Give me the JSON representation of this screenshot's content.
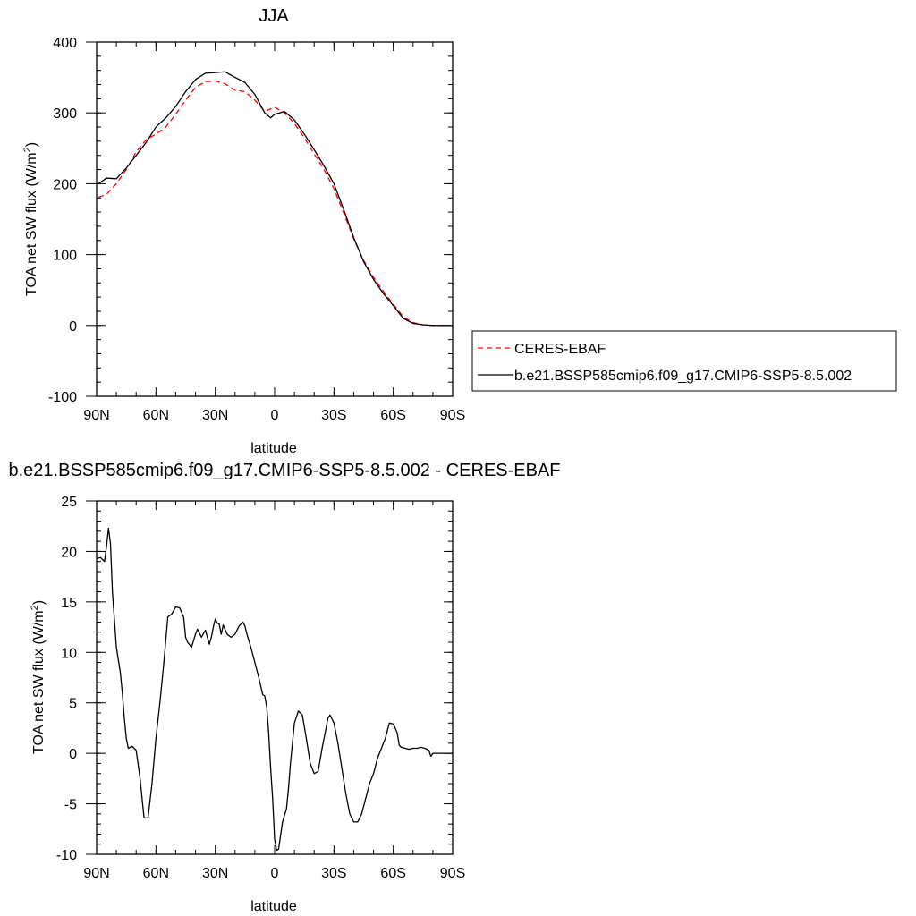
{
  "chart_data": [
    {
      "type": "line",
      "title": "JJA",
      "xlabel": "latitude",
      "ylabel": "TOA net SW flux (W/m",
      "ylabel_sup": "2",
      "ylabel_close": ")",
      "xlim": [
        90,
        -90
      ],
      "ylim": [
        -100,
        400
      ],
      "x_ticks": [
        90,
        60,
        30,
        0,
        -30,
        -60,
        -90
      ],
      "x_tick_labels": [
        "90N",
        "60N",
        "30N",
        "0",
        "30S",
        "60S",
        "90S"
      ],
      "y_ticks": [
        -100,
        0,
        100,
        200,
        300,
        400
      ],
      "y_tick_labels": [
        "-100",
        "0",
        "100",
        "200",
        "300",
        "400"
      ],
      "legend": {
        "placement": "right",
        "entries": [
          "CERES-EBAF",
          "b.e21.BSSP585cmip6.f09_g17.CMIP6-SSP5-8.5.002"
        ]
      },
      "series": [
        {
          "name": "CERES-EBAF",
          "color": "#ff0000",
          "style": "dashed",
          "x": [
            89,
            85,
            80,
            75,
            70,
            65,
            60,
            55,
            50,
            45,
            40,
            35,
            30,
            25,
            20,
            15,
            10,
            5,
            0,
            -5,
            -10,
            -15,
            -20,
            -25,
            -30,
            -35,
            -40,
            -45,
            -50,
            -55,
            -60,
            -65,
            -70,
            -75,
            -80,
            -85,
            -89
          ],
          "y": [
            181,
            185,
            200,
            220,
            245,
            262,
            270,
            280,
            298,
            318,
            336,
            344,
            345,
            341,
            332,
            330,
            318,
            302,
            308,
            300,
            285,
            265,
            242,
            220,
            193,
            158,
            122,
            92,
            68,
            48,
            30,
            12,
            4,
            1,
            0,
            0,
            0
          ]
        },
        {
          "name": "b.e21.BSSP585cmip6.f09_g17.CMIP6-SSP5-8.5.002",
          "color": "#000000",
          "style": "solid",
          "x": [
            89,
            85,
            80,
            75,
            70,
            65,
            60,
            55,
            50,
            45,
            40,
            35,
            30,
            25,
            20,
            15,
            10,
            5,
            2,
            0,
            -5,
            -10,
            -15,
            -20,
            -25,
            -30,
            -35,
            -40,
            -45,
            -50,
            -55,
            -60,
            -65,
            -70,
            -75,
            -80,
            -85,
            -89
          ],
          "y": [
            200,
            208,
            207,
            222,
            240,
            258,
            280,
            293,
            309,
            330,
            347,
            356,
            357,
            358,
            350,
            343,
            326,
            300,
            293,
            298,
            302,
            290,
            270,
            248,
            225,
            200,
            163,
            124,
            90,
            65,
            45,
            28,
            10,
            3,
            1,
            0,
            0,
            0
          ]
        }
      ]
    },
    {
      "type": "line",
      "title": "b.e21.BSSP585cmip6.f09_g17.CMIP6-SSP5-8.5.002 - CERES-EBAF",
      "xlabel": "latitude",
      "ylabel": "TOA net SW flux (W/m",
      "ylabel_sup": "2",
      "ylabel_close": ")",
      "xlim": [
        90,
        -90
      ],
      "ylim": [
        -10,
        25
      ],
      "x_ticks": [
        90,
        60,
        30,
        0,
        -30,
        -60,
        -90
      ],
      "x_tick_labels": [
        "90N",
        "60N",
        "30N",
        "0",
        "30S",
        "60S",
        "90S"
      ],
      "y_ticks": [
        -10,
        -5,
        0,
        5,
        10,
        15,
        20,
        25
      ],
      "y_tick_labels": [
        "-10",
        "-5",
        "0",
        "5",
        "10",
        "15",
        "20",
        "25"
      ],
      "series": [
        {
          "color": "#000000",
          "style": "solid",
          "x": [
            90,
            88,
            87,
            86,
            85,
            84,
            83,
            82,
            80,
            78,
            77,
            76,
            75,
            74,
            72,
            70,
            68,
            67,
            66,
            64,
            62,
            60,
            58,
            56,
            54,
            52,
            50,
            48,
            46,
            45,
            44,
            42,
            40,
            39,
            37,
            35,
            33,
            32,
            31,
            30,
            29,
            28,
            27,
            26,
            24,
            22,
            20,
            18,
            16,
            15,
            14,
            12,
            10,
            8,
            6,
            5,
            4,
            3,
            2,
            1,
            0,
            -1,
            -2,
            -4,
            -6,
            -7,
            -8,
            -9,
            -10,
            -12,
            -14,
            -16,
            -18,
            -20,
            -22,
            -24,
            -26,
            -27,
            -28,
            -30,
            -32,
            -34,
            -36,
            -38,
            -40,
            -42,
            -44,
            -46,
            -48,
            -50,
            -52,
            -54,
            -56,
            -58,
            -60,
            -61,
            -62,
            -63,
            -64,
            -66,
            -68,
            -70,
            -72,
            -74,
            -76,
            -78,
            -79,
            -80,
            -81,
            -82,
            -84,
            -86,
            -88,
            -90
          ],
          "y": [
            19.3,
            19.4,
            19.2,
            19.0,
            20.5,
            22.3,
            20.8,
            16.0,
            10.5,
            8.0,
            6.0,
            3.5,
            1.5,
            0.5,
            0.7,
            0.3,
            -2.5,
            -4.5,
            -6.4,
            -6.4,
            -3.0,
            1.5,
            5.0,
            9.0,
            13.5,
            13.8,
            14.5,
            14.4,
            13.5,
            11.5,
            11.0,
            10.5,
            11.8,
            12.3,
            11.5,
            12.2,
            10.8,
            11.5,
            12.5,
            13.3,
            12.9,
            12.8,
            11.8,
            12.7,
            11.8,
            11.5,
            11.8,
            12.6,
            13.0,
            12.6,
            11.8,
            10.5,
            9.0,
            7.5,
            5.8,
            5.7,
            4.6,
            2.0,
            -1.5,
            -4.5,
            -8.5,
            -9.6,
            -9.5,
            -6.8,
            -5.5,
            -3.5,
            -1.0,
            1.0,
            3.0,
            4.2,
            3.8,
            1.5,
            -1.0,
            -2.0,
            -1.8,
            0.5,
            2.5,
            3.5,
            3.8,
            3.0,
            1.0,
            -1.5,
            -4.0,
            -6.0,
            -6.8,
            -6.8,
            -6.0,
            -4.5,
            -3.0,
            -2.0,
            -0.5,
            0.5,
            1.5,
            3.0,
            2.9,
            2.5,
            2.0,
            0.8,
            0.6,
            0.5,
            0.4,
            0.5,
            0.5,
            0.6,
            0.5,
            0.3,
            -0.3,
            0.0,
            0.0,
            0.0,
            0.0,
            0.0,
            0.0,
            0.0
          ]
        }
      ]
    }
  ]
}
